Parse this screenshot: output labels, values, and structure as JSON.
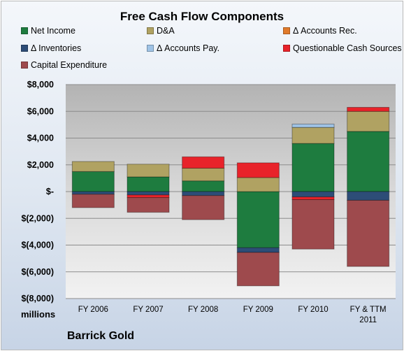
{
  "chart_data": {
    "type": "bar",
    "stacked": true,
    "title": "Free Cash Flow Components",
    "categories": [
      "FY 2006",
      "FY 2007",
      "FY 2008",
      "FY 2009",
      "FY 2010",
      "FY & TTM 2011"
    ],
    "series": [
      {
        "name": "Net Income",
        "color": "#1e7c3f",
        "values": [
          1500,
          1100,
          800,
          -4200,
          3600,
          4500
        ]
      },
      {
        "name": "D&A",
        "color": "#b0a262",
        "values": [
          750,
          950,
          950,
          1050,
          1200,
          1500
        ]
      },
      {
        "name": "Δ Accounts Rec.",
        "color": "#e07a2a",
        "values": [
          0,
          0,
          0,
          0,
          0,
          0
        ]
      },
      {
        "name": "Δ Inventories",
        "color": "#2d4d77",
        "values": [
          -200,
          -250,
          -300,
          -350,
          -400,
          -650
        ]
      },
      {
        "name": "Δ Accounts Pay.",
        "color": "#9fc3e6",
        "values": [
          0,
          0,
          0,
          0,
          250,
          0
        ]
      },
      {
        "name": "Questionable Cash Sources",
        "color": "#e8232a",
        "values": [
          0,
          -200,
          850,
          1100,
          -200,
          300
        ]
      },
      {
        "name": "Capital Expenditure",
        "color": "#9e4a4d",
        "values": [
          -1000,
          -1100,
          -1800,
          -2500,
          -3700,
          -4950
        ]
      }
    ],
    "ylim": [
      -8000,
      8000
    ],
    "yticks": [
      8000,
      6000,
      4000,
      2000,
      0,
      -2000,
      -4000,
      -6000,
      -8000
    ],
    "ytick_labels": [
      "$8,000",
      "$6,000",
      "$4,000",
      "$2,000",
      "$-",
      "$(2,000)",
      "$(4,000)",
      "$(6,000)",
      "$(8,000)"
    ],
    "ylabel": "millions",
    "grid": true,
    "legend": "top"
  },
  "annotation": "Barrick Gold"
}
